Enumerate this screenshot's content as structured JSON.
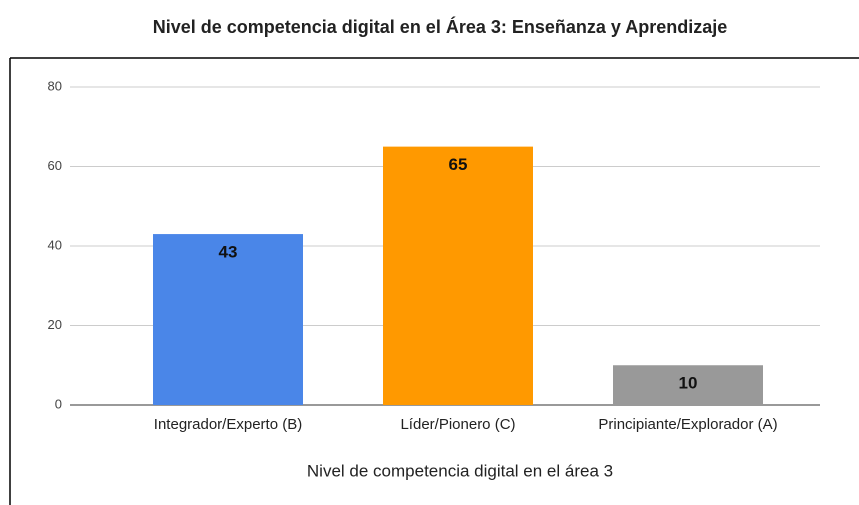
{
  "chart_data": {
    "type": "bar",
    "title": "Nivel de competencia digital en el Área 3: Enseñanza y Aprendizaje",
    "x_label": "Nivel de competencia digital en el área 3",
    "categories": [
      "Integrador/Experto (B)",
      "Líder/Pionero (C)",
      "Principiante/Explorador (A)"
    ],
    "values": [
      43,
      65,
      10
    ],
    "colors": [
      "#4a86e8",
      "#ff9900",
      "#999999"
    ],
    "ylim": [
      0,
      80
    ],
    "yticks": [
      0,
      20,
      40,
      60,
      80
    ],
    "grid": true
  }
}
